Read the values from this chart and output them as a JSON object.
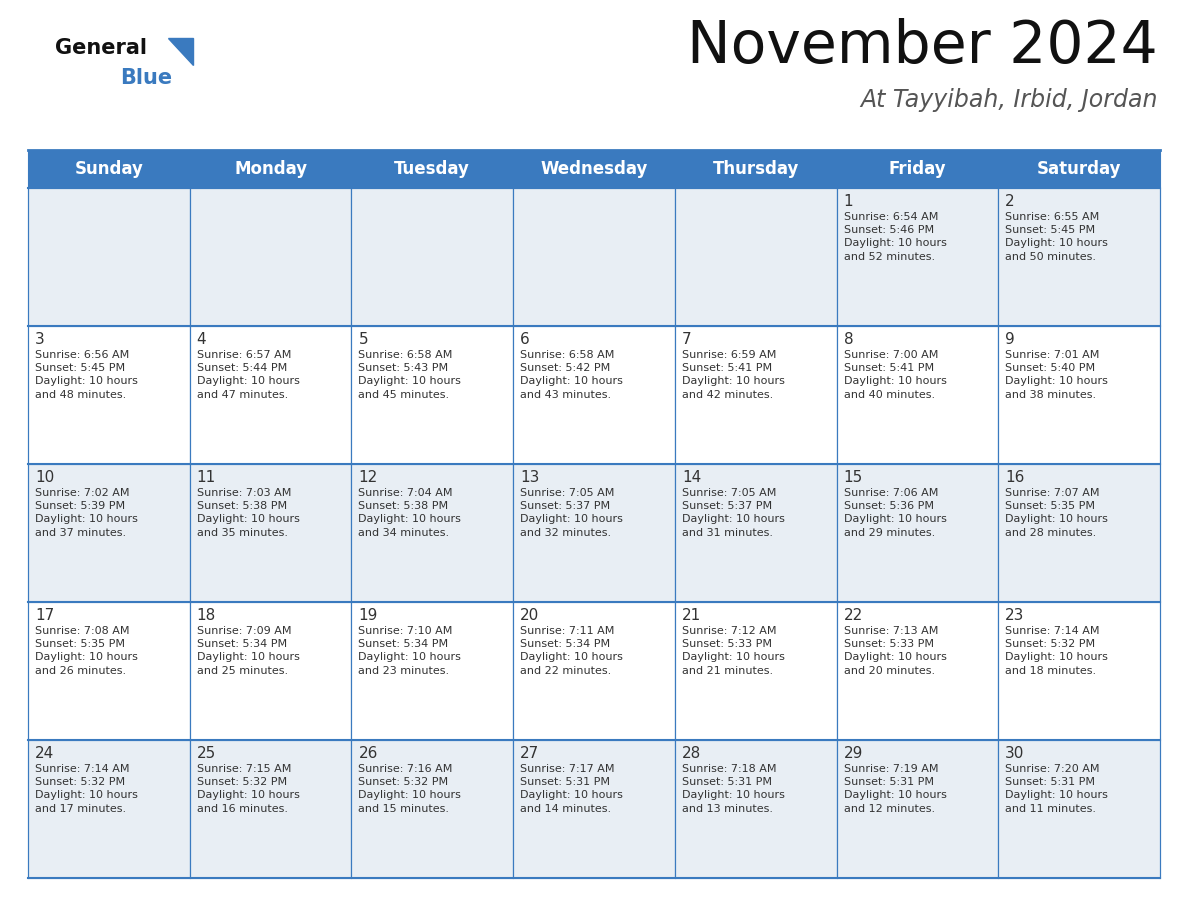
{
  "title": "November 2024",
  "subtitle": "At Tayyibah, Irbid, Jordan",
  "header_bg": "#3a7abf",
  "header_text": "#ffffff",
  "days_of_week": [
    "Sunday",
    "Monday",
    "Tuesday",
    "Wednesday",
    "Thursday",
    "Friday",
    "Saturday"
  ],
  "cell_bg_light": "#e8eef4",
  "cell_bg_white": "#ffffff",
  "grid_color": "#3a7abf",
  "text_color": "#333333",
  "calendar_data": [
    [
      null,
      null,
      null,
      null,
      null,
      {
        "day": 1,
        "sunrise": "6:54 AM",
        "sunset": "5:46 PM",
        "daylight_min": "52"
      },
      {
        "day": 2,
        "sunrise": "6:55 AM",
        "sunset": "5:45 PM",
        "daylight_min": "50"
      }
    ],
    [
      {
        "day": 3,
        "sunrise": "6:56 AM",
        "sunset": "5:45 PM",
        "daylight_min": "48"
      },
      {
        "day": 4,
        "sunrise": "6:57 AM",
        "sunset": "5:44 PM",
        "daylight_min": "47"
      },
      {
        "day": 5,
        "sunrise": "6:58 AM",
        "sunset": "5:43 PM",
        "daylight_min": "45"
      },
      {
        "day": 6,
        "sunrise": "6:58 AM",
        "sunset": "5:42 PM",
        "daylight_min": "43"
      },
      {
        "day": 7,
        "sunrise": "6:59 AM",
        "sunset": "5:41 PM",
        "daylight_min": "42"
      },
      {
        "day": 8,
        "sunrise": "7:00 AM",
        "sunset": "5:41 PM",
        "daylight_min": "40"
      },
      {
        "day": 9,
        "sunrise": "7:01 AM",
        "sunset": "5:40 PM",
        "daylight_min": "38"
      }
    ],
    [
      {
        "day": 10,
        "sunrise": "7:02 AM",
        "sunset": "5:39 PM",
        "daylight_min": "37"
      },
      {
        "day": 11,
        "sunrise": "7:03 AM",
        "sunset": "5:38 PM",
        "daylight_min": "35"
      },
      {
        "day": 12,
        "sunrise": "7:04 AM",
        "sunset": "5:38 PM",
        "daylight_min": "34"
      },
      {
        "day": 13,
        "sunrise": "7:05 AM",
        "sunset": "5:37 PM",
        "daylight_min": "32"
      },
      {
        "day": 14,
        "sunrise": "7:05 AM",
        "sunset": "5:37 PM",
        "daylight_min": "31"
      },
      {
        "day": 15,
        "sunrise": "7:06 AM",
        "sunset": "5:36 PM",
        "daylight_min": "29"
      },
      {
        "day": 16,
        "sunrise": "7:07 AM",
        "sunset": "5:35 PM",
        "daylight_min": "28"
      }
    ],
    [
      {
        "day": 17,
        "sunrise": "7:08 AM",
        "sunset": "5:35 PM",
        "daylight_min": "26"
      },
      {
        "day": 18,
        "sunrise": "7:09 AM",
        "sunset": "5:34 PM",
        "daylight_min": "25"
      },
      {
        "day": 19,
        "sunrise": "7:10 AM",
        "sunset": "5:34 PM",
        "daylight_min": "23"
      },
      {
        "day": 20,
        "sunrise": "7:11 AM",
        "sunset": "5:34 PM",
        "daylight_min": "22"
      },
      {
        "day": 21,
        "sunrise": "7:12 AM",
        "sunset": "5:33 PM",
        "daylight_min": "21"
      },
      {
        "day": 22,
        "sunrise": "7:13 AM",
        "sunset": "5:33 PM",
        "daylight_min": "20"
      },
      {
        "day": 23,
        "sunrise": "7:14 AM",
        "sunset": "5:32 PM",
        "daylight_min": "18"
      }
    ],
    [
      {
        "day": 24,
        "sunrise": "7:14 AM",
        "sunset": "5:32 PM",
        "daylight_min": "17"
      },
      {
        "day": 25,
        "sunrise": "7:15 AM",
        "sunset": "5:32 PM",
        "daylight_min": "16"
      },
      {
        "day": 26,
        "sunrise": "7:16 AM",
        "sunset": "5:32 PM",
        "daylight_min": "15"
      },
      {
        "day": 27,
        "sunrise": "7:17 AM",
        "sunset": "5:31 PM",
        "daylight_min": "14"
      },
      {
        "day": 28,
        "sunrise": "7:18 AM",
        "sunset": "5:31 PM",
        "daylight_min": "13"
      },
      {
        "day": 29,
        "sunrise": "7:19 AM",
        "sunset": "5:31 PM",
        "daylight_min": "12"
      },
      {
        "day": 30,
        "sunrise": "7:20 AM",
        "sunset": "5:31 PM",
        "daylight_min": "11"
      }
    ]
  ]
}
